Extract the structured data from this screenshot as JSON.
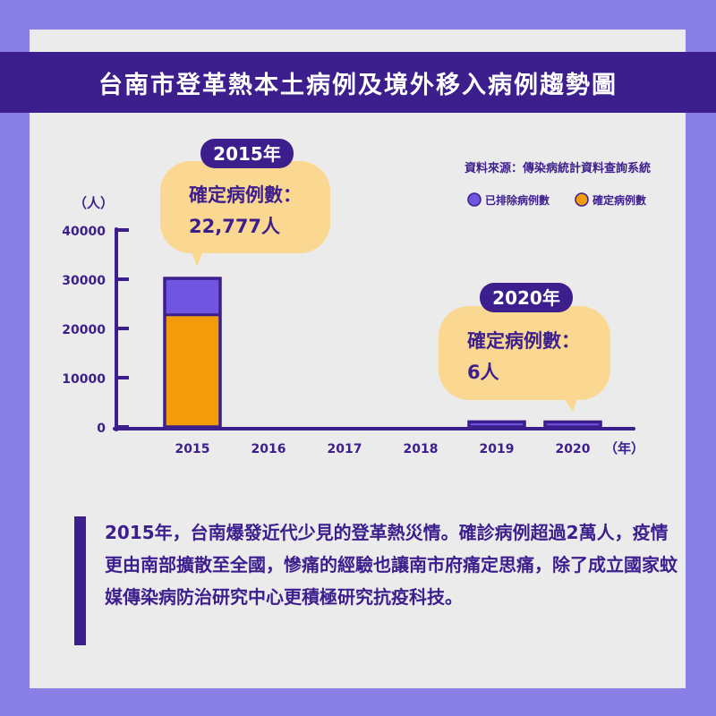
{
  "title": "台南市登革熱本土病例及境外移入病例趨勢圖",
  "source": "資料來源：傳染病統計資料查詢系統",
  "callouts": [
    {
      "year_label": "2015年",
      "text1": "確定病例數：",
      "text2": "22,777人"
    },
    {
      "year_label": "2020年",
      "text1": "確定病例數：",
      "text2": "6人"
    }
  ],
  "caption": "2015年，台南爆發近代少見的登革熱災情。確診病例超過2萬人，疫情更由南部擴散至全國，慘痛的經驗也讓南市府痛定思痛，除了成立國家蚊媒傳染病防治研究中心更積極研究抗疫科技。",
  "colors": {
    "background": "#8a7fe4",
    "card": "#ebebeb",
    "navy": "#3c1e8d",
    "excluded": "#6f55e0",
    "confirmed": "#f39c0b",
    "bubble": "#fbd891"
  },
  "chart_data": {
    "type": "bar",
    "stacked": true,
    "categories": [
      "2015",
      "2016",
      "2017",
      "2018",
      "2019",
      "2020"
    ],
    "series": [
      {
        "name": "確定病例數",
        "color": "#f39c0b",
        "values": [
          22777,
          0,
          0,
          0,
          30,
          6
        ]
      },
      {
        "name": "已排除病例數",
        "color": "#6f55e0",
        "values": [
          7400,
          0,
          0,
          0,
          1000,
          1000
        ]
      }
    ],
    "xlabel": "（年）",
    "ylabel": "（人）",
    "yticks": [
      0,
      10000,
      20000,
      30000,
      40000
    ],
    "ylim": [
      0,
      40000
    ],
    "legend": "top-right"
  }
}
